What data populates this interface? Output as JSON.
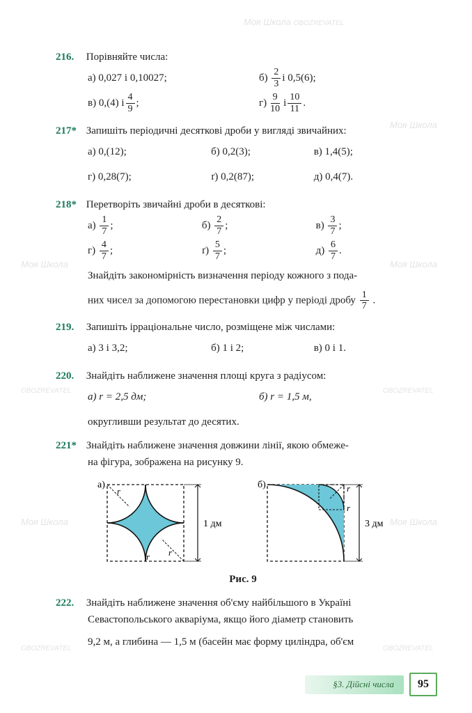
{
  "watermarks": {
    "text_a": "Моя Школа",
    "text_b": "OBOZREVATEL"
  },
  "p216": {
    "num": "216.",
    "title": "Порівняйте числа:",
    "a_label": "а) 0,027 і 0,10027;",
    "b_label": "б)",
    "b_frac_n": "2",
    "b_frac_d": "3",
    "b_tail": " і 0,5(6);",
    "v_label": "в) 0,(4) і ",
    "v_frac_n": "4",
    "v_frac_d": "9",
    "v_tail": ";",
    "g_label": "г) ",
    "g_f1n": "9",
    "g_f1d": "10",
    "g_mid": " і ",
    "g_f2n": "10",
    "g_f2d": "11",
    "g_tail": "."
  },
  "p217": {
    "num": "217",
    "title": "Запишіть періодичні десяткові дроби у вигляді звичайних:",
    "a": "а) 0,(12);",
    "b": "б) 0,2(3);",
    "v": "в) 1,4(5);",
    "g": "г) 0,28(7);",
    "gg": "ґ) 0,2(87);",
    "d": "д) 0,4(7)."
  },
  "p218": {
    "num": "218",
    "title": "Перетворіть звичайні дроби в десяткові:",
    "items": [
      {
        "l": "а)",
        "n": "1",
        "d": "7",
        "t": ";"
      },
      {
        "l": "б)",
        "n": "2",
        "d": "7",
        "t": ";"
      },
      {
        "l": "в)",
        "n": "3",
        "d": "7",
        "t": ";"
      },
      {
        "l": "г)",
        "n": "4",
        "d": "7",
        "t": ";"
      },
      {
        "l": "ґ)",
        "n": "5",
        "d": "7",
        "t": ";"
      },
      {
        "l": "д)",
        "n": "6",
        "d": "7",
        "t": "."
      }
    ],
    "note1": "Знайдіть закономірність визначення періоду кожного з пода-",
    "note2_a": "них чисел за допомогою перестановки цифр у періоді дробу ",
    "note2_fn": "1",
    "note2_fd": "7",
    "note2_t": "."
  },
  "p219": {
    "num": "219.",
    "title": "Запишіть ірраціональне число, розміщене між числами:",
    "a": "а) 3 і 3,2;",
    "b": "б) 1 і 2;",
    "v": "в) 0 і 1."
  },
  "p220": {
    "num": "220.",
    "title": "Знайдіть наближене значення площі круга з радіусом:",
    "a": "а) r = 2,5 дм;",
    "b": "б) r = 1,5 м,",
    "note": "округливши результат до десятих."
  },
  "p221": {
    "num": "221",
    "title": "Знайдіть наближене значення довжини лінії, якою обмеже-",
    "title2": "на фігура, зображена на рисунку 9.",
    "fig": {
      "caption": "Рис. 9",
      "a_label": "а)",
      "b_label": "б)",
      "a_dim": "1 дм",
      "b_dim": "3 дм",
      "r": "r",
      "fill": "#6cc7d8",
      "stroke": "#111111",
      "dash": "4,3"
    }
  },
  "p222": {
    "num": "222.",
    "l1": "Знайдіть наближене значення об'єму найбільшого в Україні",
    "l2": "Севастопольського акваріума, якщо його діаметр становить",
    "l3": "9,2 м, а глибина — 1,5 м (басейн має форму циліндра, об'єм"
  },
  "footer": {
    "section": "§3. Дійсні числа",
    "page": "95"
  },
  "colors": {
    "accent": "#1a7a5e",
    "fig_fill": "#6cc7d8"
  }
}
